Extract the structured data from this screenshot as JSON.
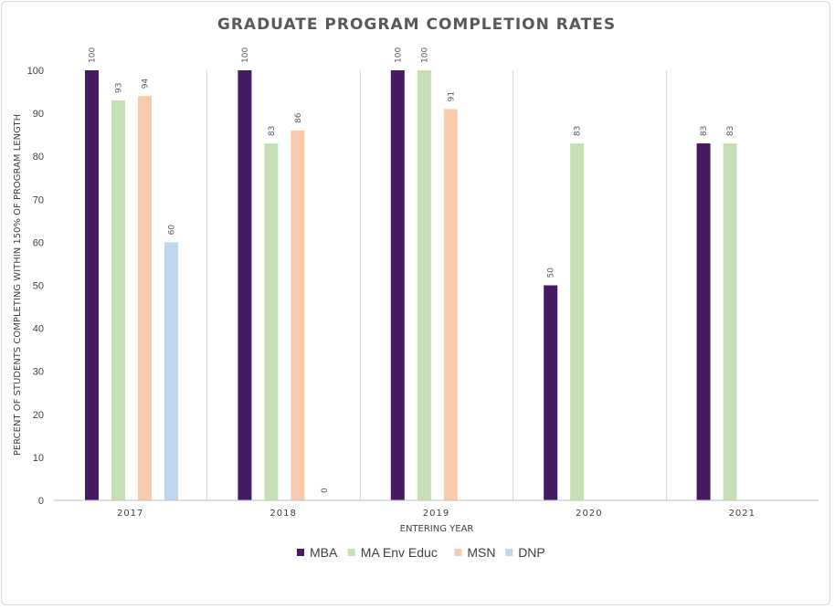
{
  "chart_data": {
    "type": "bar",
    "title": "GRADUATE PROGRAM COMPLETION RATES",
    "xlabel": "ENTERING YEAR",
    "ylabel": "PERCENT OF  STUDENTS COMPLETING WITHIN 150% OF PROGRAM LENGTH",
    "ylim": [
      0,
      100
    ],
    "yticks": [
      0,
      10,
      20,
      30,
      40,
      50,
      60,
      70,
      80,
      90,
      100
    ],
    "categories": [
      "2017",
      "2018",
      "2019",
      "2020",
      "2021"
    ],
    "legend_position": "bottom",
    "series": [
      {
        "name": "MBA",
        "color": "#461a63",
        "values": [
          100,
          100,
          100,
          50,
          83
        ]
      },
      {
        "name": "MA Env Educ",
        "color": "#c5e0b4",
        "values": [
          93,
          83,
          100,
          83,
          83
        ]
      },
      {
        "name": "MSN",
        "color": "#f8cbad",
        "values": [
          94,
          86,
          91,
          null,
          null
        ]
      },
      {
        "name": "DNP",
        "color": "#bdd7ee",
        "values": [
          60,
          0,
          null,
          null,
          null
        ]
      }
    ]
  }
}
